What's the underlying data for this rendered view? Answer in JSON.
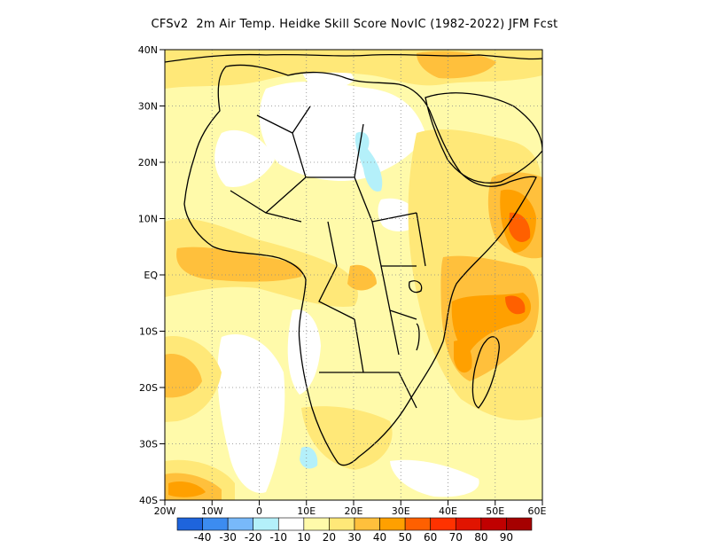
{
  "title": "CFSv2  2m Air Temp. Heidke Skill Score NovIC (1982-2022) JFM Fcst",
  "map": {
    "lat_ticks": [
      "40N",
      "30N",
      "20N",
      "10N",
      "EQ",
      "10S",
      "20S",
      "30S",
      "40S"
    ],
    "lon_ticks": [
      "20W",
      "10W",
      "0",
      "10E",
      "20E",
      "30E",
      "40E",
      "50E",
      "60E"
    ],
    "lat_range": [
      -40,
      40
    ],
    "lon_range": [
      -20,
      60
    ],
    "grid": "dotted gridlines every 10 degrees",
    "background_color": "#ffffff",
    "land_outline_color": "#000000"
  },
  "colorbar": {
    "colors": [
      "#1e64dc",
      "#3c8cf0",
      "#78b9fa",
      "#b4f0fa",
      "#ffffff",
      "#fffaaa",
      "#ffe878",
      "#ffc03c",
      "#ffa000",
      "#ff6000",
      "#ff3200",
      "#e11400",
      "#c00000",
      "#a50000"
    ],
    "labels": [
      "-40",
      "-30",
      "-20",
      "-10",
      "10",
      "20",
      "30",
      "40",
      "50",
      "60",
      "70",
      "80",
      "90"
    ]
  }
}
